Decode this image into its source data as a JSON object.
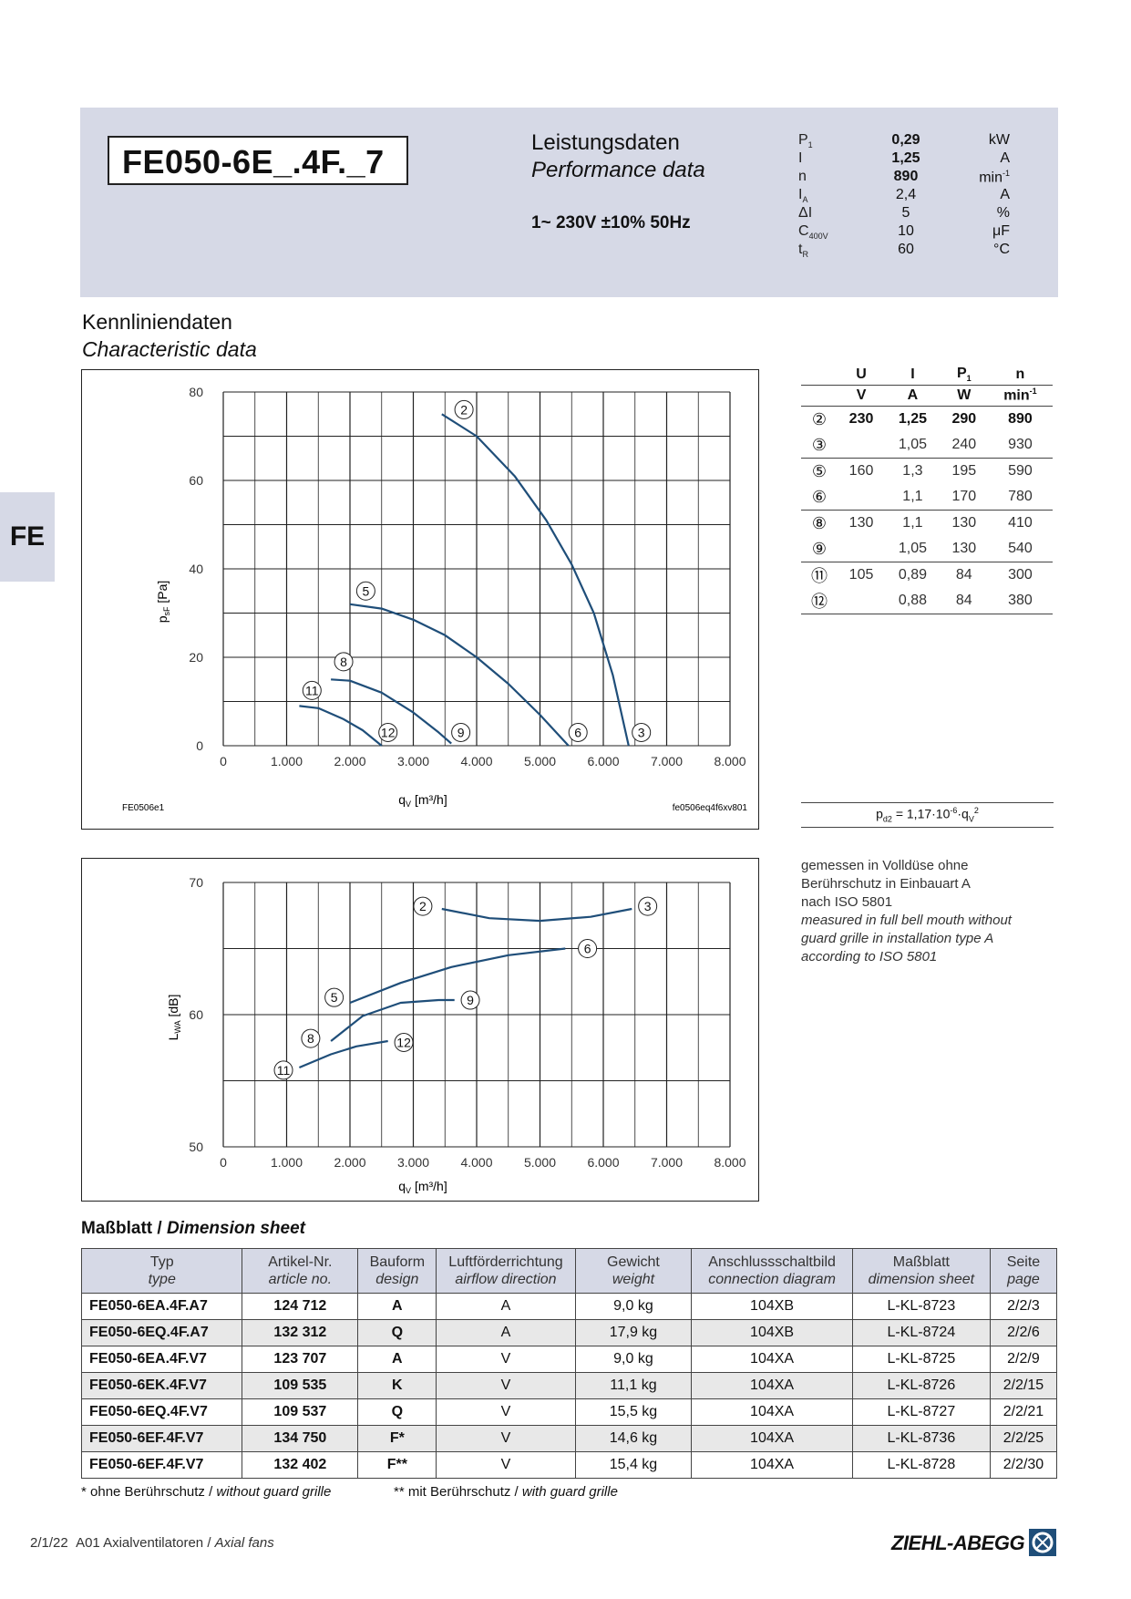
{
  "header": {
    "model": "FE050-6E_.4F._7",
    "title_de": "Leistungsdaten",
    "title_en": "Performance data",
    "voltage": "1~ 230V ±10% 50Hz",
    "params": [
      {
        "sym": "P",
        "sub": "1",
        "value": "0,29",
        "unit": "kW",
        "bold": true
      },
      {
        "sym": "I",
        "sub": "",
        "value": "1,25",
        "unit": "A",
        "bold": true
      },
      {
        "sym": "n",
        "sub": "",
        "value": "890",
        "unit": "min",
        "unit_sup": "-1",
        "bold": true
      },
      {
        "sym": "I",
        "sub": "A",
        "value": "2,4",
        "unit": "A",
        "bold": false
      },
      {
        "sym": "ΔI",
        "sub": "",
        "value": "5",
        "unit": "%",
        "bold": false
      },
      {
        "sym": "C",
        "sub": "400V",
        "value": "10",
        "unit": "μF",
        "bold": false
      },
      {
        "sym": "t",
        "sub": "R",
        "value": "60",
        "unit": "°C",
        "bold": false
      }
    ]
  },
  "side_tab": "FE",
  "section": {
    "title_de": "Kennliniendaten",
    "title_en": "Characteristic data"
  },
  "char_table": {
    "headers": [
      "U",
      "I",
      "P",
      "n"
    ],
    "header_sub": [
      "",
      "",
      "1",
      ""
    ],
    "units": [
      "V",
      "A",
      "W",
      "min"
    ],
    "unit_sup": [
      "",
      "",
      "",
      "-1"
    ],
    "rows": [
      {
        "id": "2",
        "U": "230",
        "I": "1,25",
        "P": "290",
        "n": "890",
        "bold": true
      },
      {
        "id": "3",
        "U": "",
        "I": "1,05",
        "P": "240",
        "n": "930"
      },
      {
        "id": "5",
        "U": "160",
        "I": "1,3",
        "P": "195",
        "n": "590"
      },
      {
        "id": "6",
        "U": "",
        "I": "1,1",
        "P": "170",
        "n": "780"
      },
      {
        "id": "8",
        "U": "130",
        "I": "1,1",
        "P": "130",
        "n": "410"
      },
      {
        "id": "9",
        "U": "",
        "I": "1,05",
        "P": "130",
        "n": "540"
      },
      {
        "id": "11",
        "U": "105",
        "I": "0,89",
        "P": "84",
        "n": "300"
      },
      {
        "id": "12",
        "U": "",
        "I": "0,88",
        "P": "84",
        "n": "380"
      }
    ],
    "formula": "p",
    "formula_sub": "d2",
    "formula_rest": " = 1,17·10",
    "formula_sup": "-6",
    "formula_q": "·q",
    "formula_qsub": "V",
    "formula_qsup": "2"
  },
  "note": {
    "de": [
      "gemessen in Volldüse ohne",
      "Berührschutz in Einbauart A",
      "nach ISO 5801"
    ],
    "en": [
      "measured in full bell mouth without",
      "guard grille in installation type A",
      "according to ISO 5801"
    ]
  },
  "chart_data": [
    {
      "type": "line",
      "xlabel": "q_V [m³/h]",
      "ylabel": "p_sF [Pa]",
      "xlim": [
        0,
        8000
      ],
      "ylim": [
        0,
        80
      ],
      "x_ticks": [
        "0",
        "1.000",
        "2.000",
        "3.000",
        "4.000",
        "5.000",
        "6.000",
        "7.000",
        "8.000"
      ],
      "y_ticks": [
        "0",
        "20",
        "40",
        "60",
        "80"
      ],
      "grid": true,
      "corner_left": "FE0506e1",
      "corner_right": "fe0506eq4f6xv801",
      "series": [
        {
          "x": [
            3450,
            4000,
            4600,
            5100,
            5500,
            5850,
            6150,
            6400
          ],
          "y": [
            75,
            70,
            61,
            51,
            41,
            30,
            16,
            0
          ]
        },
        {
          "x": [
            2000,
            2500,
            3000,
            3500,
            4000,
            4500,
            5000,
            5450
          ],
          "y": [
            32,
            31,
            28.5,
            25,
            20,
            14,
            7,
            0
          ]
        },
        {
          "x": [
            1700,
            2000,
            2500,
            3000,
            3400,
            3600
          ],
          "y": [
            15,
            14.7,
            12,
            7.5,
            3,
            0.5
          ]
        },
        {
          "x": [
            1200,
            1500,
            1900,
            2200,
            2500
          ],
          "y": [
            9,
            8.5,
            6,
            3.5,
            0
          ]
        }
      ],
      "markers": [
        {
          "label": "2",
          "x": 3800,
          "y": 76
        },
        {
          "label": "3",
          "x": 6600,
          "y": 3
        },
        {
          "label": "5",
          "x": 2250,
          "y": 35
        },
        {
          "label": "6",
          "x": 5600,
          "y": 3
        },
        {
          "label": "8",
          "x": 1900,
          "y": 19
        },
        {
          "label": "9",
          "x": 3750,
          "y": 3
        },
        {
          "label": "11",
          "x": 1400,
          "y": 12.5
        },
        {
          "label": "12",
          "x": 2600,
          "y": 3
        }
      ]
    },
    {
      "type": "line",
      "xlabel": "q_V [m³/h]",
      "ylabel": "L_WA [dB]",
      "xlim": [
        0,
        8000
      ],
      "ylim": [
        50,
        70
      ],
      "x_ticks": [
        "0",
        "1.000",
        "2.000",
        "3.000",
        "4.000",
        "5.000",
        "6.000",
        "7.000",
        "8.000"
      ],
      "y_ticks": [
        "50",
        "60",
        "70"
      ],
      "grid": true,
      "series": [
        {
          "x": [
            3450,
            4200,
            5000,
            5800,
            6450
          ],
          "y": [
            68,
            67.3,
            67.1,
            67.4,
            68
          ]
        },
        {
          "x": [
            2000,
            2800,
            3600,
            4500,
            5400
          ],
          "y": [
            60.9,
            62.4,
            63.6,
            64.5,
            65
          ]
        },
        {
          "x": [
            1700,
            2200,
            2800,
            3400,
            3650
          ],
          "y": [
            58,
            59.9,
            60.9,
            61.1,
            61.1
          ]
        },
        {
          "x": [
            1200,
            1700,
            2100,
            2600
          ],
          "y": [
            56,
            57,
            57.6,
            58
          ]
        }
      ],
      "markers": [
        {
          "label": "2",
          "x": 3150,
          "y": 68.2
        },
        {
          "label": "3",
          "x": 6700,
          "y": 68.2
        },
        {
          "label": "5",
          "x": 1750,
          "y": 61.3
        },
        {
          "label": "6",
          "x": 5750,
          "y": 65
        },
        {
          "label": "8",
          "x": 1380,
          "y": 58.2
        },
        {
          "label": "9",
          "x": 3900,
          "y": 61.1
        },
        {
          "label": "11",
          "x": 950,
          "y": 55.8
        },
        {
          "label": "12",
          "x": 2850,
          "y": 57.9
        }
      ]
    }
  ],
  "dims": {
    "title_de": "Maßblatt",
    "title_en": "Dimension sheet",
    "headers": [
      {
        "de": "Typ",
        "en": "type"
      },
      {
        "de": "Artikel-Nr.",
        "en": "article no."
      },
      {
        "de": "Bauform",
        "en": "design"
      },
      {
        "de": "Luftförderrichtung",
        "en": "airflow direction"
      },
      {
        "de": "Gewicht",
        "en": "weight"
      },
      {
        "de": "Anschlussschaltbild",
        "en": "connection diagram"
      },
      {
        "de": "Maßblatt",
        "en": "dimension sheet"
      },
      {
        "de": "Seite",
        "en": "page"
      }
    ],
    "rows": [
      [
        "FE050-6EA.4F.A7",
        "124 712",
        "A",
        "A",
        "9,0 kg",
        "104XB",
        "L-KL-8723",
        "2/2/3"
      ],
      [
        "FE050-6EQ.4F.A7",
        "132 312",
        "Q",
        "A",
        "17,9 kg",
        "104XB",
        "L-KL-8724",
        "2/2/6"
      ],
      [
        "FE050-6EA.4F.V7",
        "123 707",
        "A",
        "V",
        "9,0 kg",
        "104XA",
        "L-KL-8725",
        "2/2/9"
      ],
      [
        "FE050-6EK.4F.V7",
        "109 535",
        "K",
        "V",
        "11,1 kg",
        "104XA",
        "L-KL-8726",
        "2/2/15"
      ],
      [
        "FE050-6EQ.4F.V7",
        "109 537",
        "Q",
        "V",
        "15,5 kg",
        "104XA",
        "L-KL-8727",
        "2/2/21"
      ],
      [
        "FE050-6EF.4F.V7",
        "134 750",
        "F*",
        "V",
        "14,6 kg",
        "104XA",
        "L-KL-8736",
        "2/2/25"
      ],
      [
        "FE050-6EF.4F.V7",
        "132 402",
        "F**",
        "V",
        "15,4 kg",
        "104XA",
        "L-KL-8728",
        "2/2/30"
      ]
    ],
    "foot1_de": "* ohne Berührschutz / ",
    "foot1_en": "without guard grille",
    "foot2_de": "** mit Berührschutz / ",
    "foot2_en": "with guard grille"
  },
  "footer": {
    "page": "2/1/22",
    "section_de": "A01 Axialventilatoren / ",
    "section_en": "Axial fans",
    "brand": "ZIEHL-ABEGG"
  },
  "colors": {
    "curve": "#1f4e79",
    "band": "#d6d9e6"
  }
}
